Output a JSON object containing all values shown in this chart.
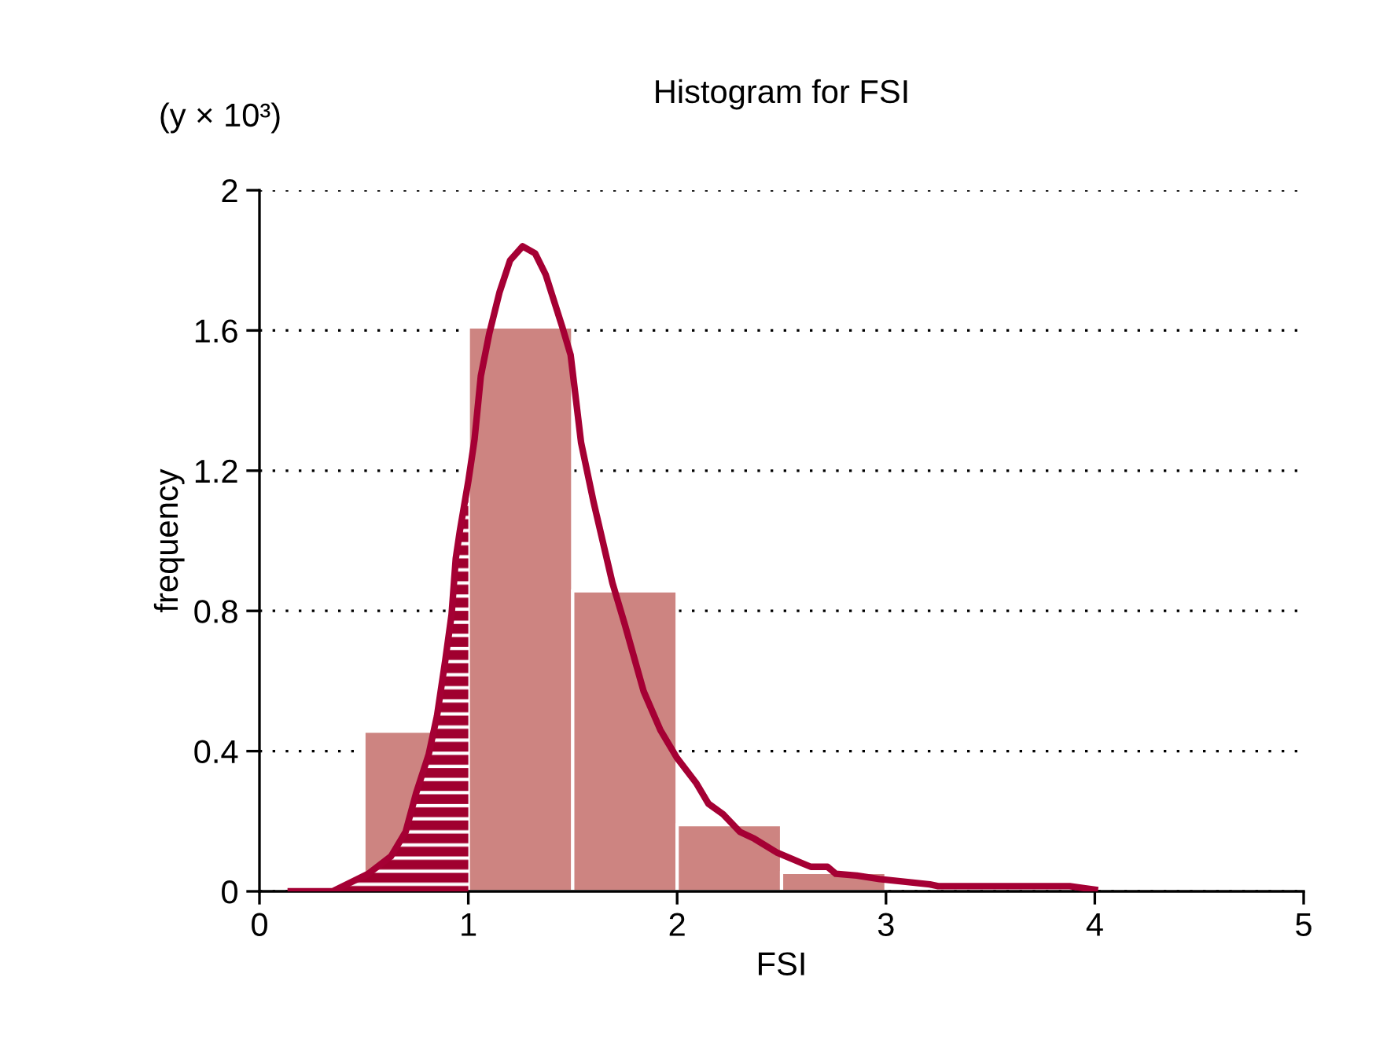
{
  "chart_data": {
    "type": "histogram",
    "title": "Histogram for FSI",
    "xlabel": "FSI",
    "ylabel": "frequency",
    "annotations": [
      "(y × 10³)"
    ],
    "bins": [
      0.5,
      1,
      1.5,
      2,
      2.5,
      3,
      3.5,
      4
    ],
    "values": [
      0.457,
      1.61,
      0.857,
      0.19,
      0.054,
      null,
      null
    ],
    "color": "#cd8481",
    "series": [
      {
        "type": "area",
        "color": "#a0002f",
        "x": [
          0.15,
          0.35,
          0.52,
          0.63,
          0.7,
          0.75,
          0.81,
          0.85,
          0.89,
          0.92,
          0.94,
          0.96,
          1.0
        ],
        "values": [
          0,
          0,
          0.05,
          0.1,
          0.17,
          0.28,
          0.39,
          0.5,
          0.66,
          0.79,
          0.95,
          1.03,
          1.17
        ]
      },
      {
        "type": "line",
        "color": "#a50034",
        "x": [
          0.15,
          0.35,
          0.52,
          0.63,
          0.7,
          0.75,
          0.81,
          0.85,
          0.89,
          0.92,
          0.94,
          0.96,
          1.0,
          1.03,
          1.06,
          1.1,
          1.15,
          1.2,
          1.26,
          1.32,
          1.37,
          1.45,
          1.49,
          1.54,
          1.6,
          1.69,
          1.75,
          1.84,
          1.92,
          2.0,
          2.09,
          2.15,
          2.22,
          2.3,
          2.37,
          2.48,
          2.64,
          2.72,
          2.76,
          2.86,
          2.97,
          3.21,
          3.25,
          3.88,
          3.94,
          4.0
        ],
        "values": [
          0,
          0,
          0.05,
          0.1,
          0.17,
          0.28,
          0.39,
          0.5,
          0.66,
          0.79,
          0.95,
          1.03,
          1.17,
          1.29,
          1.47,
          1.59,
          1.71,
          1.8,
          1.84,
          1.82,
          1.76,
          1.61,
          1.53,
          1.28,
          1.11,
          0.88,
          0.76,
          0.57,
          0.46,
          0.38,
          0.31,
          0.25,
          0.22,
          0.17,
          0.15,
          0.11,
          0.07,
          0.07,
          0.05,
          0.045,
          0.035,
          0.02,
          0.015,
          0.015,
          0.01,
          0.005
        ]
      }
    ],
    "xlim": [
      0,
      5
    ],
    "xticks": [
      0,
      1,
      2,
      3,
      4,
      5
    ],
    "ylim": [
      0,
      2
    ],
    "yticks": [
      0,
      0.4,
      0.8,
      1.2,
      1.6,
      2
    ],
    "grid": "y",
    "legend": false
  }
}
